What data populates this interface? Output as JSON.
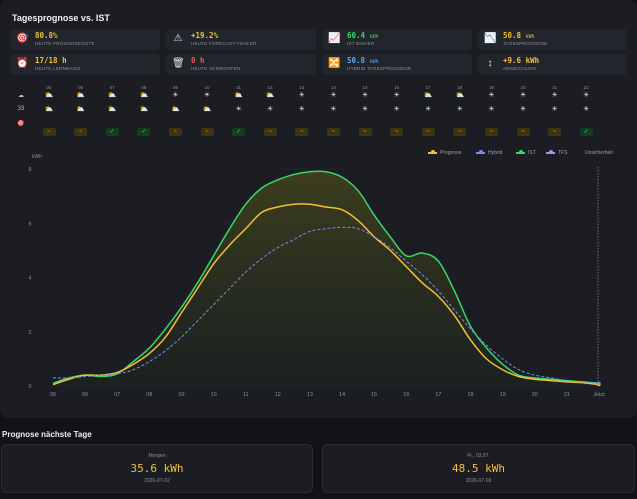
{
  "header": {
    "title": "Tagesprognose vs. IST"
  },
  "kpis": [
    {
      "icon": "target-icon",
      "glyph": "🎯",
      "value": "80.8%",
      "unit": "",
      "label": "HEUTE PROGNOSEGÜTE",
      "color": "#f2c037"
    },
    {
      "icon": "warning-icon",
      "glyph": "⚠",
      "value": "+19.2%",
      "unit": "",
      "label": "HEUTE FORECAST-FEHLER",
      "color": "#f2c037"
    },
    {
      "icon": "chart-line-icon",
      "glyph": "📈",
      "value": "60.4",
      "unit": "kWh",
      "label": "IST BISHER",
      "color": "#3ad66b"
    },
    {
      "icon": "chart-down-icon",
      "glyph": "📉",
      "value": "50.8",
      "unit": "kWh",
      "label": "TAGESPROGNOSE",
      "color": "#f2c037"
    },
    {
      "icon": "alarm-clock-icon",
      "glyph": "⏰",
      "value": "17/18 h",
      "unit": "",
      "label": "HEUTE LERNBASIS",
      "color": "#f2c037"
    },
    {
      "icon": "trash-icon",
      "glyph": "🗑",
      "value": "0 h",
      "unit": "",
      "label": "HEUTE VERWORFEN",
      "color": "#f05b5b"
    },
    {
      "icon": "shuffle-icon",
      "glyph": "🔀",
      "value": "50.8",
      "unit": "kWh",
      "label": "HYBRID TAGESPROGNOSE",
      "color": "#5aa8f0"
    },
    {
      "icon": "up-down-arrow-icon",
      "glyph": "↕",
      "value": "+9.6 kWh",
      "unit": "",
      "label": "ABWEICHUNG",
      "color": "#f2c037"
    }
  ],
  "hours": [
    "05",
    "06",
    "07",
    "08",
    "09",
    "10",
    "11",
    "12",
    "13",
    "14",
    "15",
    "16",
    "17",
    "18",
    "19",
    "20",
    "21",
    "22"
  ],
  "row_labels": [
    "☁",
    "33",
    "🎯"
  ],
  "wx_row1": [
    "⛅",
    "⛅",
    "⛅",
    "⛅",
    "☀",
    "☀",
    "⛅",
    "⛅",
    "☀",
    "☀",
    "☀",
    "☀",
    "⛅",
    "⛅",
    "☀",
    "☀",
    "☀",
    "☀"
  ],
  "wx_row2": [
    "⛅",
    "⛅",
    "⛅",
    "⛅",
    "⛅",
    "⛅",
    "☀",
    "☀",
    "☀",
    "☀",
    "☀",
    "☀",
    "☀",
    "☀",
    "☀",
    "☀",
    "☀",
    "☀"
  ],
  "badges": [
    "tilde",
    "tilde",
    "check",
    "check",
    "tilde",
    "tilde",
    "check",
    "tilde",
    "tilde",
    "tilde",
    "tilde",
    "tilde",
    "tilde",
    "tilde",
    "tilde",
    "tilde",
    "tilde",
    "check"
  ],
  "badge_glyphs": {
    "tilde": "~",
    "check": "✓"
  },
  "legend": {
    "prognose": "Prognose",
    "hybrid": "Hybrid",
    "ist": "IST",
    "tfs": "TFS",
    "unsicherheit": "Unsicherheit"
  },
  "colors": {
    "prognose": "#f2c037",
    "hybrid": "#7b8cf0",
    "ist": "#3ad66b",
    "tfs": "#b38cf0"
  },
  "chart_data": {
    "type": "line",
    "ylabel": "kWh",
    "ylim": [
      0,
      8
    ],
    "yticks": [
      0,
      2,
      4,
      6,
      8
    ],
    "x": [
      5,
      5.5,
      6,
      6.5,
      7,
      7.5,
      8,
      8.5,
      9,
      9.5,
      10,
      10.5,
      11,
      11.5,
      12,
      12.5,
      13,
      13.5,
      14,
      14.5,
      15,
      15.5,
      16,
      16.5,
      17,
      17.5,
      18,
      18.5,
      19,
      19.5,
      20,
      20.5,
      21,
      21.5,
      22
    ],
    "xticks": [
      "05",
      "06",
      "07",
      "08",
      "09",
      "10",
      "11",
      "12",
      "13",
      "14",
      "15",
      "16",
      "17",
      "18",
      "19",
      "20",
      "21",
      "Jetzt"
    ],
    "series": [
      {
        "name": "IST",
        "key": "ist",
        "values": [
          0.1,
          0.3,
          0.4,
          0.35,
          0.45,
          0.9,
          1.4,
          2.1,
          2.9,
          3.8,
          4.8,
          5.8,
          6.7,
          7.3,
          7.6,
          7.8,
          7.9,
          7.9,
          7.7,
          7.2,
          6.3,
          5.5,
          4.8,
          4.9,
          4.6,
          3.5,
          2.2,
          1.4,
          0.8,
          0.4,
          0.3,
          0.25,
          0.2,
          0.15,
          0.1
        ]
      },
      {
        "name": "Prognose",
        "key": "prognose",
        "values": [
          0.05,
          0.25,
          0.4,
          0.4,
          0.5,
          0.8,
          1.2,
          1.8,
          2.7,
          3.6,
          4.5,
          5.2,
          5.8,
          6.4,
          6.6,
          6.7,
          6.7,
          6.6,
          6.5,
          6.1,
          5.5,
          5.0,
          4.4,
          3.8,
          3.3,
          2.6,
          1.7,
          1.0,
          0.6,
          0.35,
          0.25,
          0.2,
          0.15,
          0.12,
          0.05
        ]
      },
      {
        "name": "Hybrid",
        "key": "hybrid",
        "dash": true,
        "values": [
          0.3,
          0.3,
          0.35,
          0.4,
          0.45,
          0.6,
          0.9,
          1.3,
          1.8,
          2.4,
          3.0,
          3.6,
          4.2,
          4.7,
          5.1,
          5.4,
          5.7,
          5.8,
          5.85,
          5.8,
          5.5,
          5.1,
          4.6,
          4.1,
          3.5,
          2.8,
          2.1,
          1.5,
          1.0,
          0.6,
          0.4,
          0.3,
          0.2,
          0.15,
          0.1
        ]
      }
    ]
  },
  "forecast": {
    "title": "Prognose nächste Tage",
    "days": [
      {
        "label": "Morgen",
        "value": "35.6 kWh",
        "date": "2026-07-02"
      },
      {
        "label": "Fr., 03.07.",
        "value": "48.5 kWh",
        "date": "2026-07-03"
      }
    ]
  }
}
